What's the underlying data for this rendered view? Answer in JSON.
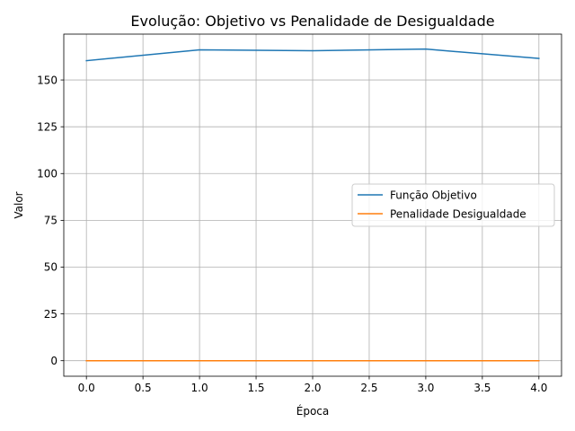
{
  "chart_data": {
    "type": "line",
    "title": "Evolução: Objetivo vs Penalidade de Desigualdade",
    "xlabel": "Época",
    "ylabel": "Valor",
    "x": [
      0,
      1,
      2,
      3,
      4
    ],
    "xlim": [
      -0.2,
      4.2
    ],
    "ylim": [
      -8.3,
      174.5
    ],
    "xticks": [
      0.0,
      0.5,
      1.0,
      1.5,
      2.0,
      2.5,
      3.0,
      3.5,
      4.0
    ],
    "xtick_labels": [
      "0.0",
      "0.5",
      "1.0",
      "1.5",
      "2.0",
      "2.5",
      "3.0",
      "3.5",
      "4.0"
    ],
    "yticks": [
      0,
      25,
      50,
      75,
      100,
      125,
      150
    ],
    "ytick_labels": [
      "0",
      "25",
      "50",
      "75",
      "100",
      "125",
      "150"
    ],
    "grid": true,
    "legend_position": "center-right",
    "series": [
      {
        "name": "Função Objetivo",
        "color": "#1f77b4",
        "values": [
          160.3,
          166.1,
          165.6,
          166.5,
          161.5
        ]
      },
      {
        "name": "Penalidade Desigualdade",
        "color": "#ff7f0e",
        "values": [
          0,
          0,
          0,
          0,
          0
        ]
      }
    ]
  }
}
